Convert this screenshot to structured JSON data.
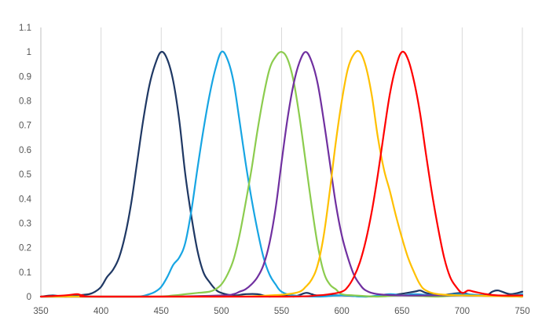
{
  "chart_data": {
    "type": "line",
    "title": "",
    "xlabel": "",
    "ylabel": "",
    "xlim": [
      350,
      750
    ],
    "ylim": [
      0,
      1.1
    ],
    "x_ticks": [
      350,
      400,
      450,
      500,
      550,
      600,
      650,
      700,
      750
    ],
    "y_ticks": [
      0,
      0.1,
      0.2,
      0.3,
      0.4,
      0.5,
      0.6,
      0.7,
      0.8,
      0.9,
      1,
      1.1
    ],
    "grid": "vertical",
    "legend": "none",
    "series": [
      {
        "color": "#1f3864",
        "points": [
          [
            350,
            0.0
          ],
          [
            360,
            0.005
          ],
          [
            370,
            0.0
          ],
          [
            380,
            0.005
          ],
          [
            390,
            0.01
          ],
          [
            395,
            0.02
          ],
          [
            400,
            0.04
          ],
          [
            405,
            0.08
          ],
          [
            410,
            0.11
          ],
          [
            415,
            0.16
          ],
          [
            420,
            0.25
          ],
          [
            425,
            0.38
          ],
          [
            430,
            0.55
          ],
          [
            435,
            0.72
          ],
          [
            440,
            0.86
          ],
          [
            445,
            0.95
          ],
          [
            450,
            1.0
          ],
          [
            455,
            0.97
          ],
          [
            460,
            0.88
          ],
          [
            465,
            0.72
          ],
          [
            470,
            0.5
          ],
          [
            475,
            0.33
          ],
          [
            480,
            0.19
          ],
          [
            485,
            0.1
          ],
          [
            490,
            0.06
          ],
          [
            495,
            0.03
          ],
          [
            500,
            0.015
          ],
          [
            510,
            0.005
          ],
          [
            520,
            0.01
          ],
          [
            530,
            0.01
          ],
          [
            540,
            0.0
          ],
          [
            550,
            0.005
          ],
          [
            560,
            0.0
          ],
          [
            570,
            0.015
          ],
          [
            575,
            0.01
          ],
          [
            580,
            0.005
          ],
          [
            600,
            0.005
          ],
          [
            620,
            0.0
          ],
          [
            640,
            0.005
          ],
          [
            660,
            0.02
          ],
          [
            665,
            0.025
          ],
          [
            670,
            0.015
          ],
          [
            680,
            0.005
          ],
          [
            690,
            0.01
          ],
          [
            700,
            0.015
          ],
          [
            710,
            0.005
          ],
          [
            720,
            0.005
          ],
          [
            725,
            0.02
          ],
          [
            730,
            0.025
          ],
          [
            740,
            0.01
          ],
          [
            750,
            0.02
          ]
        ]
      },
      {
        "color": "#17a5e3",
        "points": [
          [
            350,
            0.0
          ],
          [
            400,
            0.0
          ],
          [
            430,
            0.0
          ],
          [
            440,
            0.01
          ],
          [
            445,
            0.02
          ],
          [
            450,
            0.04
          ],
          [
            455,
            0.08
          ],
          [
            460,
            0.13
          ],
          [
            465,
            0.16
          ],
          [
            470,
            0.22
          ],
          [
            475,
            0.35
          ],
          [
            480,
            0.52
          ],
          [
            485,
            0.68
          ],
          [
            490,
            0.82
          ],
          [
            495,
            0.93
          ],
          [
            500,
            1.0
          ],
          [
            505,
            0.97
          ],
          [
            510,
            0.88
          ],
          [
            515,
            0.72
          ],
          [
            520,
            0.55
          ],
          [
            525,
            0.4
          ],
          [
            530,
            0.27
          ],
          [
            535,
            0.16
          ],
          [
            540,
            0.09
          ],
          [
            545,
            0.05
          ],
          [
            550,
            0.02
          ],
          [
            560,
            0.005
          ],
          [
            580,
            0.0
          ],
          [
            600,
            0.005
          ],
          [
            620,
            0.0
          ],
          [
            640,
            0.01
          ],
          [
            650,
            0.005
          ],
          [
            660,
            0.01
          ],
          [
            680,
            0.005
          ],
          [
            700,
            0.01
          ],
          [
            720,
            0.005
          ],
          [
            740,
            0.005
          ],
          [
            750,
            0.01
          ]
        ]
      },
      {
        "color": "#8ccc4e",
        "points": [
          [
            350,
            0.0
          ],
          [
            440,
            0.0
          ],
          [
            460,
            0.005
          ],
          [
            470,
            0.01
          ],
          [
            480,
            0.015
          ],
          [
            490,
            0.02
          ],
          [
            495,
            0.03
          ],
          [
            500,
            0.05
          ],
          [
            505,
            0.09
          ],
          [
            510,
            0.15
          ],
          [
            515,
            0.25
          ],
          [
            520,
            0.38
          ],
          [
            525,
            0.52
          ],
          [
            530,
            0.68
          ],
          [
            535,
            0.82
          ],
          [
            540,
            0.93
          ],
          [
            545,
            0.98
          ],
          [
            550,
            1.0
          ],
          [
            555,
            0.97
          ],
          [
            560,
            0.88
          ],
          [
            565,
            0.73
          ],
          [
            570,
            0.55
          ],
          [
            575,
            0.37
          ],
          [
            580,
            0.21
          ],
          [
            585,
            0.1
          ],
          [
            590,
            0.05
          ],
          [
            595,
            0.03
          ],
          [
            600,
            0.01
          ],
          [
            610,
            0.005
          ],
          [
            630,
            0.0
          ],
          [
            650,
            0.005
          ],
          [
            680,
            0.0
          ],
          [
            700,
            0.005
          ],
          [
            750,
            0.0
          ]
        ]
      },
      {
        "color": "#7030a0",
        "points": [
          [
            350,
            0.0
          ],
          [
            450,
            0.0
          ],
          [
            500,
            0.005
          ],
          [
            510,
            0.01
          ],
          [
            515,
            0.02
          ],
          [
            520,
            0.03
          ],
          [
            525,
            0.05
          ],
          [
            530,
            0.08
          ],
          [
            535,
            0.13
          ],
          [
            540,
            0.22
          ],
          [
            545,
            0.36
          ],
          [
            550,
            0.55
          ],
          [
            555,
            0.73
          ],
          [
            560,
            0.87
          ],
          [
            565,
            0.96
          ],
          [
            570,
            1.0
          ],
          [
            575,
            0.96
          ],
          [
            580,
            0.87
          ],
          [
            585,
            0.72
          ],
          [
            590,
            0.55
          ],
          [
            595,
            0.38
          ],
          [
            600,
            0.25
          ],
          [
            605,
            0.16
          ],
          [
            610,
            0.09
          ],
          [
            615,
            0.05
          ],
          [
            620,
            0.025
          ],
          [
            630,
            0.01
          ],
          [
            650,
            0.005
          ],
          [
            680,
            0.005
          ],
          [
            700,
            0.005
          ],
          [
            750,
            0.0
          ]
        ]
      },
      {
        "color": "#ffc000",
        "points": [
          [
            350,
            0.0
          ],
          [
            500,
            0.0
          ],
          [
            540,
            0.005
          ],
          [
            555,
            0.01
          ],
          [
            565,
            0.02
          ],
          [
            570,
            0.04
          ],
          [
            575,
            0.07
          ],
          [
            580,
            0.13
          ],
          [
            585,
            0.25
          ],
          [
            590,
            0.43
          ],
          [
            595,
            0.63
          ],
          [
            600,
            0.8
          ],
          [
            605,
            0.93
          ],
          [
            610,
            0.99
          ],
          [
            615,
            1.0
          ],
          [
            620,
            0.94
          ],
          [
            625,
            0.82
          ],
          [
            630,
            0.65
          ],
          [
            635,
            0.52
          ],
          [
            640,
            0.43
          ],
          [
            645,
            0.33
          ],
          [
            650,
            0.24
          ],
          [
            655,
            0.16
          ],
          [
            660,
            0.1
          ],
          [
            665,
            0.05
          ],
          [
            670,
            0.025
          ],
          [
            680,
            0.01
          ],
          [
            700,
            0.005
          ],
          [
            750,
            0.0
          ]
        ]
      },
      {
        "color": "#ff0000",
        "points": [
          [
            350,
            0.0
          ],
          [
            370,
            0.005
          ],
          [
            380,
            0.01
          ],
          [
            385,
            0.005
          ],
          [
            400,
            0.0
          ],
          [
            550,
            0.0
          ],
          [
            580,
            0.005
          ],
          [
            590,
            0.01
          ],
          [
            600,
            0.02
          ],
          [
            605,
            0.04
          ],
          [
            610,
            0.08
          ],
          [
            615,
            0.14
          ],
          [
            620,
            0.23
          ],
          [
            625,
            0.35
          ],
          [
            630,
            0.5
          ],
          [
            635,
            0.67
          ],
          [
            640,
            0.83
          ],
          [
            645,
            0.94
          ],
          [
            650,
            1.0
          ],
          [
            655,
            0.97
          ],
          [
            660,
            0.88
          ],
          [
            665,
            0.75
          ],
          [
            670,
            0.58
          ],
          [
            675,
            0.42
          ],
          [
            680,
            0.28
          ],
          [
            685,
            0.16
          ],
          [
            690,
            0.08
          ],
          [
            695,
            0.04
          ],
          [
            700,
            0.015
          ],
          [
            705,
            0.025
          ],
          [
            710,
            0.02
          ],
          [
            720,
            0.01
          ],
          [
            730,
            0.005
          ],
          [
            750,
            0.005
          ]
        ]
      }
    ]
  }
}
